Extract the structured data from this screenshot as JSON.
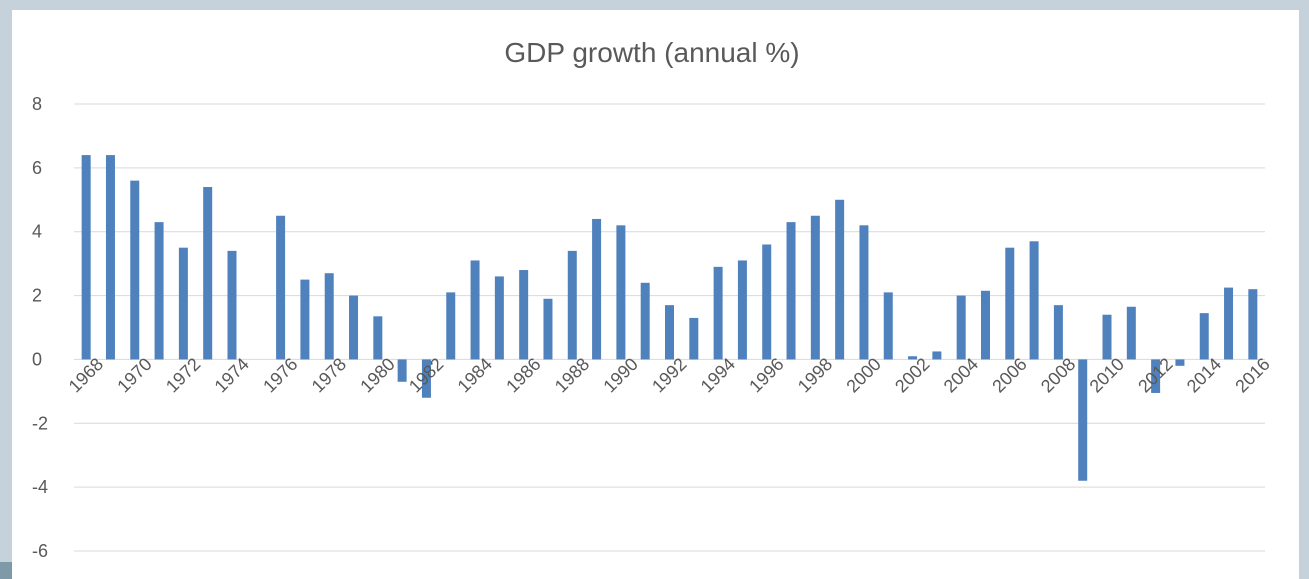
{
  "chart_data": {
    "type": "bar",
    "title": "GDP growth (annual %)",
    "xlabel": "",
    "ylabel": "",
    "ylim": [
      -6,
      8
    ],
    "yticks": [
      -6,
      -4,
      -2,
      0,
      2,
      4,
      6,
      8
    ],
    "grid": true,
    "bar_color": "#4f81bd",
    "x_tick_labels": [
      "1968",
      "1970",
      "1972",
      "1974",
      "1976",
      "1978",
      "1980",
      "1982",
      "1984",
      "1986",
      "1988",
      "1990",
      "1992",
      "1994",
      "1996",
      "1998",
      "2000",
      "2002",
      "2004",
      "2006",
      "2008",
      "2010",
      "2012",
      "2014",
      "2016"
    ],
    "categories": [
      1968,
      1969,
      1970,
      1971,
      1972,
      1973,
      1974,
      1975,
      1976,
      1977,
      1978,
      1979,
      1980,
      1981,
      1982,
      1983,
      1984,
      1985,
      1986,
      1987,
      1988,
      1989,
      1990,
      1991,
      1992,
      1993,
      1994,
      1995,
      1996,
      1997,
      1998,
      1999,
      2000,
      2001,
      2002,
      2003,
      2004,
      2005,
      2006,
      2007,
      2008,
      2009,
      2010,
      2011,
      2012,
      2013,
      2014,
      2015,
      2016
    ],
    "values": [
      6.4,
      6.4,
      5.6,
      4.3,
      3.5,
      5.4,
      3.4,
      0.0,
      4.5,
      2.5,
      2.7,
      2.0,
      1.35,
      -0.7,
      -1.2,
      2.1,
      3.1,
      2.6,
      2.8,
      1.9,
      3.4,
      4.4,
      4.2,
      2.4,
      1.7,
      1.3,
      2.9,
      3.1,
      3.6,
      4.3,
      4.5,
      5.0,
      4.2,
      2.1,
      0.1,
      0.25,
      2.0,
      2.15,
      3.5,
      3.7,
      1.7,
      -3.8,
      1.4,
      1.65,
      -1.05,
      -0.2,
      1.45,
      2.25,
      2.2
    ]
  }
}
